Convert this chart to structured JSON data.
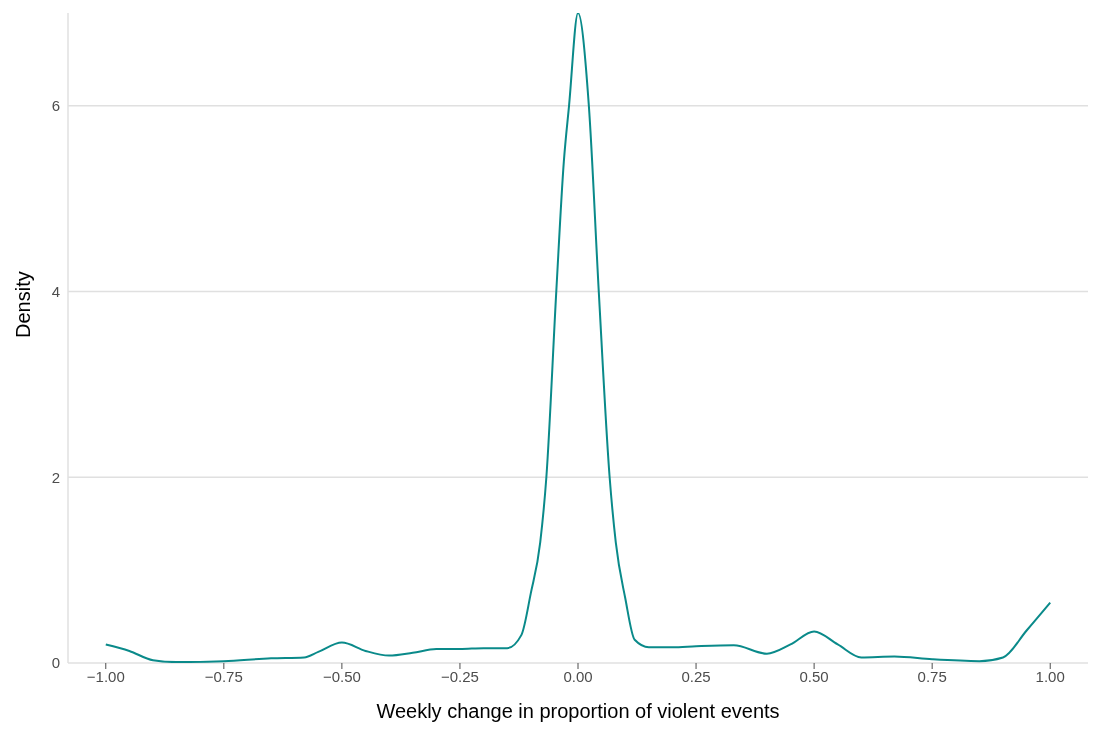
{
  "chart_data": {
    "type": "line",
    "xlabel": "Weekly change in proportion of violent events",
    "ylabel": "Density",
    "x": [
      -1,
      -0.95,
      -0.9,
      -0.85,
      -0.75,
      -0.65,
      -0.58,
      -0.55,
      -0.5,
      -0.45,
      -0.4,
      -0.35,
      -0.3,
      -0.25,
      -0.2,
      -0.15,
      -0.12,
      -0.1,
      -0.08,
      -0.067,
      -0.046,
      -0.03,
      -0.019,
      0,
      0.023,
      0.044,
      0.067,
      0.08,
      0.1,
      0.12,
      0.15,
      0.2,
      0.25,
      0.33,
      0.4,
      0.45,
      0.5,
      0.55,
      0.6,
      0.67,
      0.75,
      0.85,
      0.9,
      0.95,
      1
    ],
    "series": [
      {
        "color": "#0a8a8a",
        "values": [
          0.2,
          0.13,
          0.03,
          0.01,
          0.02,
          0.05,
          0.06,
          0.12,
          0.22,
          0.13,
          0.08,
          0.11,
          0.15,
          0.15,
          0.16,
          0.16,
          0.3,
          0.75,
          1.3,
          2,
          4,
          5.4,
          6,
          7,
          6,
          4,
          2,
          1.3,
          0.7,
          0.25,
          0.17,
          0.17,
          0.18,
          0.19,
          0.1,
          0.2,
          0.34,
          0.2,
          0.06,
          0.07,
          0.04,
          0.02,
          0.06,
          0.35,
          0.65
        ]
      }
    ],
    "xlim": [
      -1.08,
      1.08
    ],
    "ylim": [
      0,
      7
    ],
    "xticks": [
      {
        "value": -1,
        "label": "−1.00"
      },
      {
        "value": -0.75,
        "label": "−0.75"
      },
      {
        "value": -0.5,
        "label": "−0.50"
      },
      {
        "value": -0.25,
        "label": "−0.25"
      },
      {
        "value": 0,
        "label": "0.00"
      },
      {
        "value": 0.25,
        "label": "0.25"
      },
      {
        "value": 0.5,
        "label": "0.50"
      },
      {
        "value": 0.75,
        "label": "0.75"
      },
      {
        "value": 1,
        "label": "1.00"
      }
    ],
    "yticks": [
      0,
      2,
      4,
      6
    ],
    "grid": "y",
    "marker": "none",
    "line_style": "solid"
  }
}
